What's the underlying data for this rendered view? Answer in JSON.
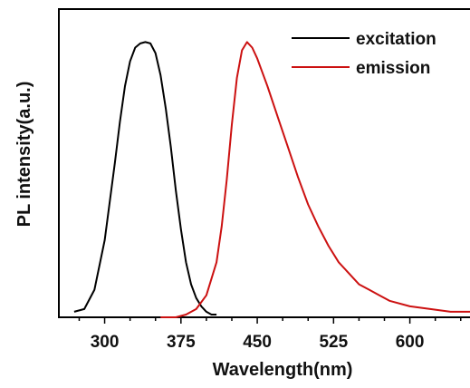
{
  "chart_data": {
    "type": "line",
    "xlabel": "Wavelength(nm)",
    "ylabel": "PL intensity(a.u.)",
    "xlim": [
      255,
      660
    ],
    "ylim": [
      0,
      1.12
    ],
    "x_major_ticks": [
      300,
      375,
      450,
      525,
      600
    ],
    "x_minor_step": 25,
    "grid": false,
    "legend_position": "top-right",
    "series": [
      {
        "name": "excitation",
        "color": "#000000",
        "x": [
          270,
          280,
          290,
          300,
          310,
          315,
          320,
          325,
          330,
          335,
          340,
          345,
          350,
          355,
          360,
          365,
          370,
          375,
          380,
          385,
          390,
          395,
          400,
          405,
          410
        ],
        "y": [
          0.02,
          0.03,
          0.1,
          0.28,
          0.56,
          0.71,
          0.84,
          0.93,
          0.98,
          0.995,
          1.0,
          0.995,
          0.96,
          0.88,
          0.76,
          0.62,
          0.46,
          0.32,
          0.2,
          0.12,
          0.07,
          0.04,
          0.02,
          0.01,
          0.01
        ]
      },
      {
        "name": "emission",
        "color": "#cc1111",
        "x": [
          355,
          370,
          380,
          390,
          400,
          410,
          415,
          420,
          425,
          430,
          435,
          440,
          445,
          450,
          455,
          460,
          470,
          480,
          490,
          500,
          510,
          520,
          530,
          540,
          550,
          560,
          570,
          580,
          600,
          620,
          640,
          660
        ],
        "y": [
          0.0,
          0.0,
          0.01,
          0.03,
          0.08,
          0.2,
          0.33,
          0.5,
          0.7,
          0.87,
          0.97,
          1.0,
          0.98,
          0.94,
          0.89,
          0.84,
          0.73,
          0.62,
          0.51,
          0.41,
          0.33,
          0.26,
          0.2,
          0.16,
          0.12,
          0.1,
          0.08,
          0.06,
          0.04,
          0.03,
          0.02,
          0.02
        ]
      }
    ]
  }
}
